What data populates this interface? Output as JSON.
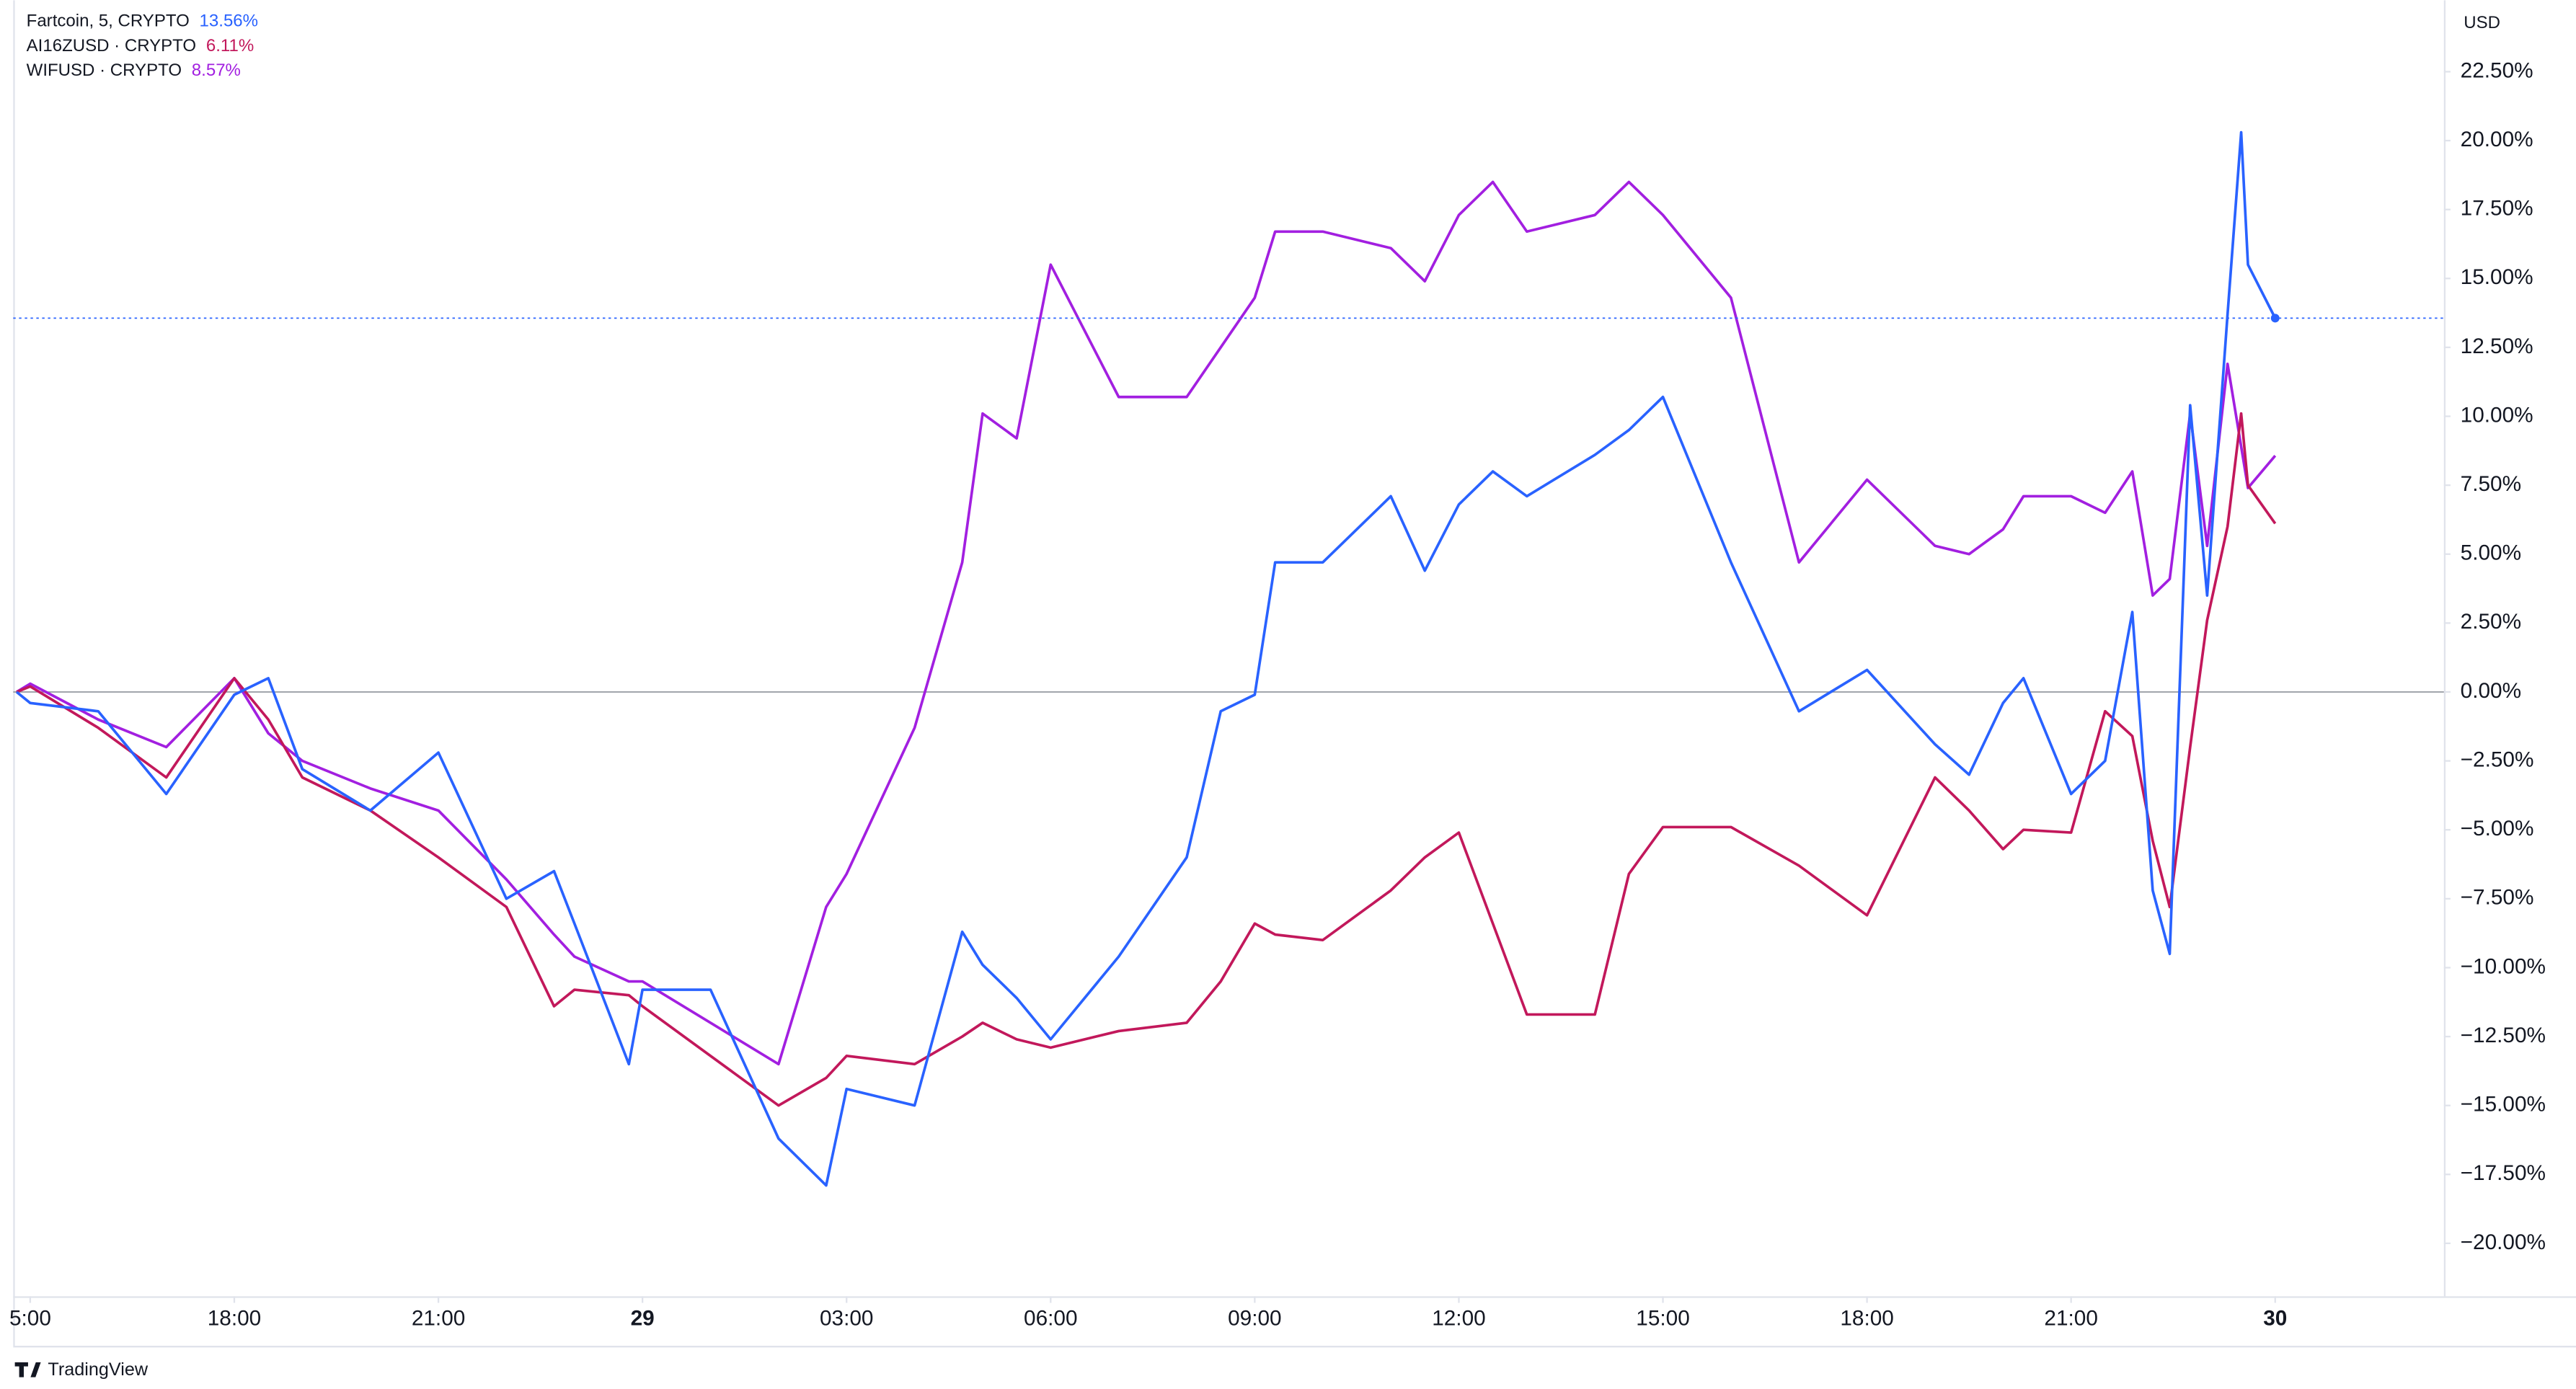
{
  "chart_data": {
    "type": "line",
    "currency": "USD",
    "brand": "TradingView",
    "x": [
      14.8,
      15,
      16,
      17,
      18,
      18.5,
      19,
      20,
      21,
      22,
      22.7,
      23,
      23.8,
      24,
      25,
      26,
      26.7,
      27,
      28,
      28.7,
      29,
      29.5,
      30,
      31,
      32,
      32.5,
      33,
      33.3,
      34,
      35,
      35.5,
      36,
      36.5,
      37,
      38,
      38.5,
      39,
      40,
      41,
      42,
      43,
      43.5,
      44,
      44.3,
      45,
      45.5,
      45.9,
      46.2,
      46.45,
      46.75,
      47,
      47.3,
      47.5,
      47.6,
      48
    ],
    "series": [
      {
        "name": "Fartcoin, 5, CRYPTO",
        "last_label": "13.56%",
        "color": "#2962ff",
        "values": [
          0,
          -0.4,
          -0.7,
          -3.7,
          -0.1,
          0.5,
          -2.8,
          -4.3,
          -2.2,
          -7.5,
          -6.5,
          -8.4,
          -13.5,
          -10.8,
          -10.8,
          -16.2,
          -17.9,
          -14.4,
          -15.0,
          -8.7,
          -9.9,
          -11.1,
          -12.6,
          -9.6,
          -6.0,
          -0.7,
          -0.1,
          4.7,
          4.7,
          7.1,
          4.4,
          6.8,
          8.0,
          7.1,
          8.6,
          9.5,
          10.7,
          4.7,
          -0.7,
          0.8,
          -1.9,
          -3.0,
          -0.4,
          0.5,
          -3.7,
          -2.5,
          2.9,
          -7.2,
          -9.5,
          10.4,
          3.5,
          13.7,
          20.3,
          15.5,
          13.56
        ]
      },
      {
        "name": "AI16ZUSD · CRYPTO",
        "last_label": "6.11%",
        "color": "#c2185b",
        "values": [
          0,
          0.2,
          -1.3,
          -3.1,
          0.5,
          -1.0,
          -3.1,
          -4.3,
          -6.0,
          -7.8,
          -11.4,
          -10.8,
          -11.0,
          -11.4,
          -13.2,
          -15.0,
          -14.0,
          -13.2,
          -13.5,
          -12.5,
          -12.0,
          -12.6,
          -12.9,
          -12.3,
          -12.0,
          -10.5,
          -8.4,
          -8.8,
          -9.0,
          -7.2,
          -6.0,
          -5.1,
          -8.4,
          -11.7,
          -11.7,
          -6.6,
          -4.9,
          -4.9,
          -6.3,
          -8.1,
          -3.1,
          -4.3,
          -5.7,
          -5.0,
          -5.1,
          -0.7,
          -1.6,
          -5.4,
          -7.8,
          -2.0,
          2.6,
          6.0,
          10.1,
          7.5,
          6.11
        ]
      },
      {
        "name": "WIFUSD · CRYPTO",
        "last_label": "8.57%",
        "color": "#a21fe0",
        "values": [
          0,
          0.3,
          -1.0,
          -2.0,
          0.5,
          -1.5,
          -2.5,
          -3.5,
          -4.3,
          -6.8,
          -8.8,
          -9.6,
          -10.5,
          -10.5,
          -12.0,
          -13.5,
          -7.8,
          -6.6,
          -1.3,
          4.7,
          10.1,
          9.2,
          15.5,
          10.7,
          10.7,
          12.5,
          14.3,
          16.7,
          16.7,
          16.1,
          14.9,
          17.3,
          18.5,
          16.7,
          17.3,
          18.5,
          17.3,
          14.3,
          4.7,
          7.7,
          5.3,
          5.0,
          5.9,
          7.1,
          7.1,
          6.5,
          8.0,
          3.5,
          4.1,
          10.1,
          5.3,
          11.9,
          8.9,
          7.4,
          8.57
        ]
      }
    ],
    "xlim": [
      14.75,
      50.48
    ],
    "xticks": [
      {
        "value": 15,
        "label": "5:00"
      },
      {
        "value": 18,
        "label": "18:00"
      },
      {
        "value": 21,
        "label": "21:00"
      },
      {
        "value": 24,
        "label": "29"
      },
      {
        "value": 27,
        "label": "03:00"
      },
      {
        "value": 30,
        "label": "06:00"
      },
      {
        "value": 33,
        "label": "09:00"
      },
      {
        "value": 36,
        "label": "12:00"
      },
      {
        "value": 39,
        "label": "15:00"
      },
      {
        "value": 42,
        "label": "18:00"
      },
      {
        "value": 45,
        "label": "21:00"
      },
      {
        "value": 48,
        "label": "30"
      }
    ],
    "ylim": [
      -21.92,
      25.09
    ],
    "yticks": [
      {
        "value": 22.5,
        "label": "22.50%"
      },
      {
        "value": 20,
        "label": "20.00%"
      },
      {
        "value": 17.5,
        "label": "17.50%"
      },
      {
        "value": 15,
        "label": "15.00%"
      },
      {
        "value": 12.5,
        "label": "12.50%"
      },
      {
        "value": 10,
        "label": "10.00%"
      },
      {
        "value": 7.5,
        "label": "7.50%"
      },
      {
        "value": 5,
        "label": "5.00%"
      },
      {
        "value": 2.5,
        "label": "2.50%"
      },
      {
        "value": 0,
        "label": "0.00%"
      },
      {
        "value": -2.5,
        "label": "−2.50%"
      },
      {
        "value": -5,
        "label": "−5.00%"
      },
      {
        "value": -7.5,
        "label": "−7.50%"
      },
      {
        "value": -10,
        "label": "−10.00%"
      },
      {
        "value": -12.5,
        "label": "−12.50%"
      },
      {
        "value": -15,
        "label": "−15.00%"
      },
      {
        "value": -17.5,
        "label": "−17.50%"
      },
      {
        "value": -20,
        "label": "−20.00%"
      }
    ],
    "grid": false
  }
}
